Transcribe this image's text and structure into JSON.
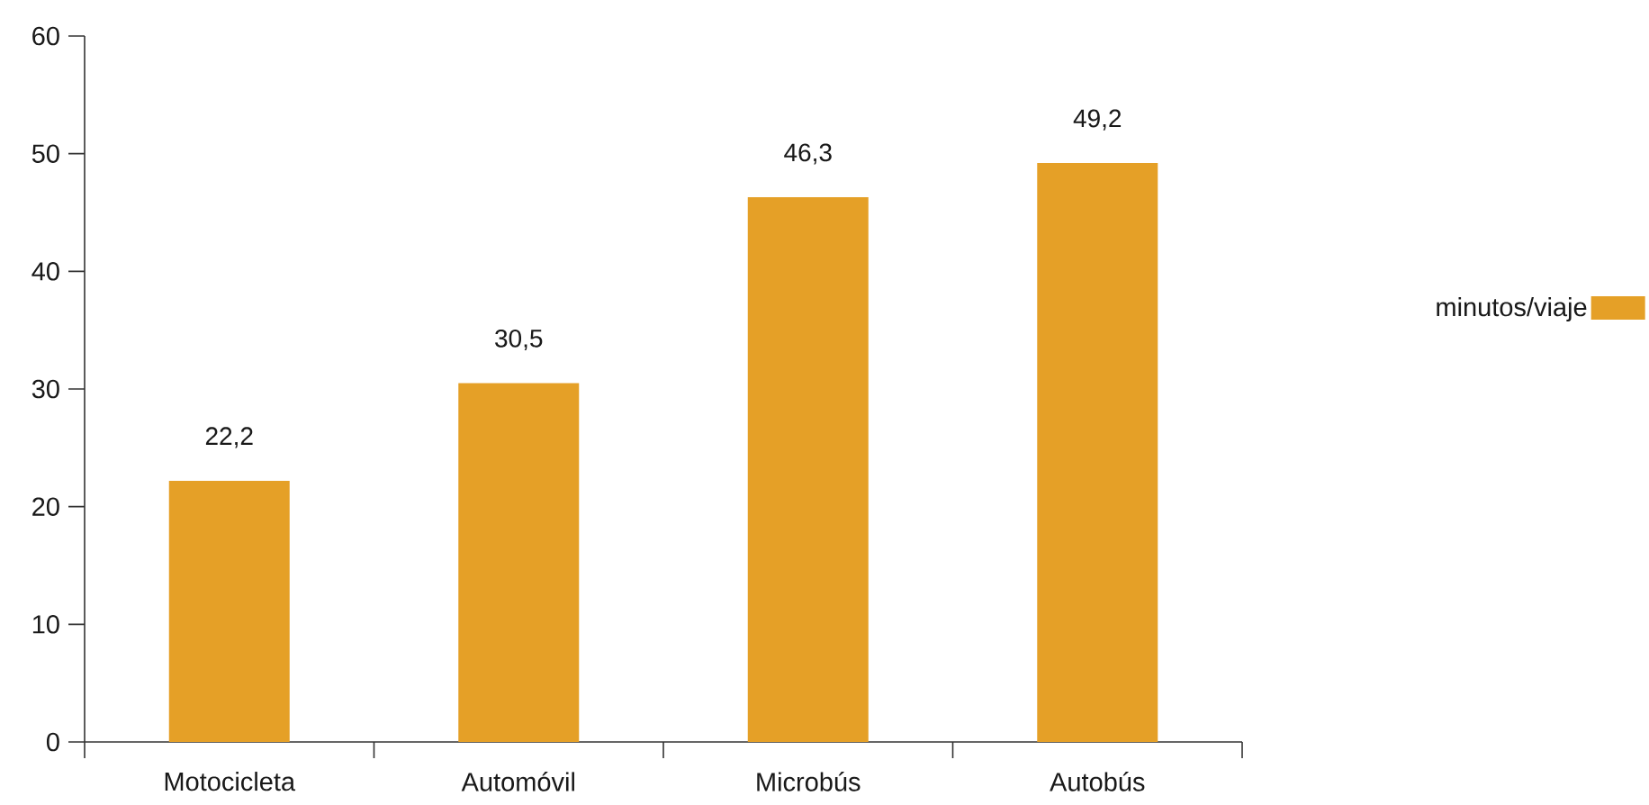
{
  "chart_data": {
    "type": "bar",
    "categories": [
      "Motocicleta",
      "Automóvil",
      "Microbús",
      "Autobús"
    ],
    "series": [
      {
        "name": "minutos/viaje",
        "color": "#e5a027",
        "values": [
          22.2,
          30.5,
          46.3,
          49.2
        ],
        "value_labels": [
          "22,2",
          "30,5",
          "46,3",
          "49,2"
        ]
      }
    ],
    "ylim": [
      0,
      60
    ],
    "yticks": [
      0,
      10,
      20,
      30,
      40,
      50,
      60
    ],
    "legend": "right"
  }
}
